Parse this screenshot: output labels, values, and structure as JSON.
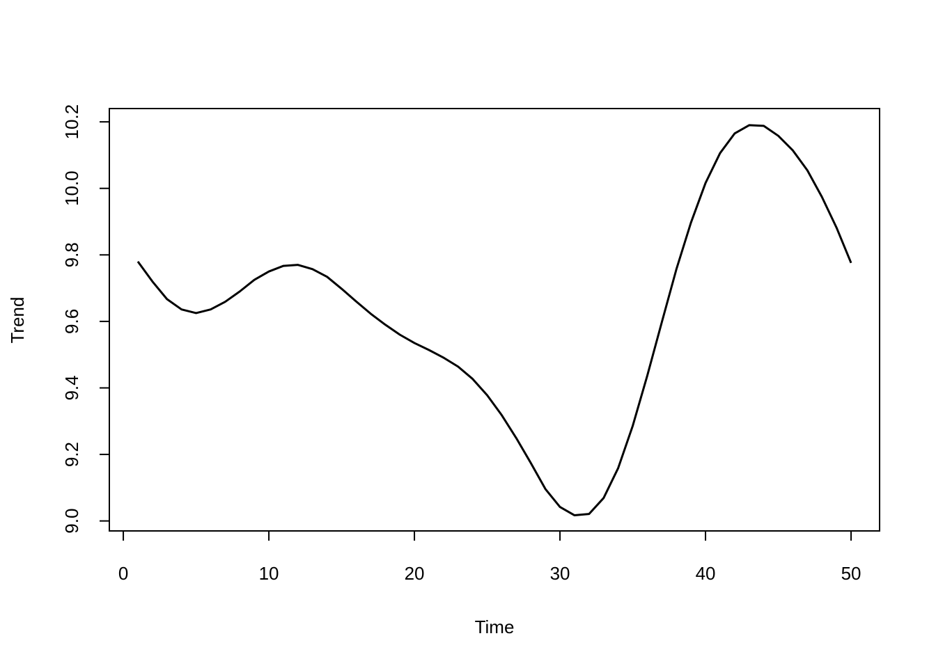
{
  "chart_data": {
    "type": "line",
    "x_label": "Time",
    "y_label": "Trend",
    "x": [
      1,
      2,
      3,
      4,
      5,
      6,
      7,
      8,
      9,
      10,
      11,
      12,
      13,
      14,
      15,
      16,
      17,
      18,
      19,
      20,
      21,
      22,
      23,
      24,
      25,
      26,
      27,
      28,
      29,
      30,
      31,
      32,
      33,
      34,
      35,
      36,
      37,
      38,
      39,
      40,
      41,
      42,
      43,
      44,
      45,
      46,
      47,
      48,
      49,
      50
    ],
    "series": [
      {
        "color": "#000000",
        "values": [
          9.78,
          9.72,
          9.667,
          9.636,
          9.625,
          9.636,
          9.659,
          9.69,
          9.725,
          9.75,
          9.767,
          9.77,
          9.757,
          9.734,
          9.698,
          9.66,
          9.623,
          9.59,
          9.56,
          9.535,
          9.514,
          9.491,
          9.464,
          9.427,
          9.378,
          9.318,
          9.249,
          9.174,
          9.096,
          9.042,
          9.017,
          9.021,
          9.069,
          9.159,
          9.286,
          9.437,
          9.598,
          9.757,
          9.897,
          10.016,
          10.106,
          10.165,
          10.19,
          10.188,
          10.158,
          10.114,
          10.054,
          9.974,
          9.882,
          9.776
        ]
      }
    ],
    "xlim": [
      -0.96,
      51.96
    ],
    "xticks": [
      0,
      10,
      20,
      30,
      40,
      50
    ],
    "ylim": [
      8.97,
      10.24
    ],
    "yticks": [
      {
        "value": 9.0,
        "label": "9.0"
      },
      9.2,
      9.4,
      9.6,
      9.8,
      {
        "value": 10.0,
        "label": "10.0"
      },
      10.2
    ],
    "grid": false
  }
}
